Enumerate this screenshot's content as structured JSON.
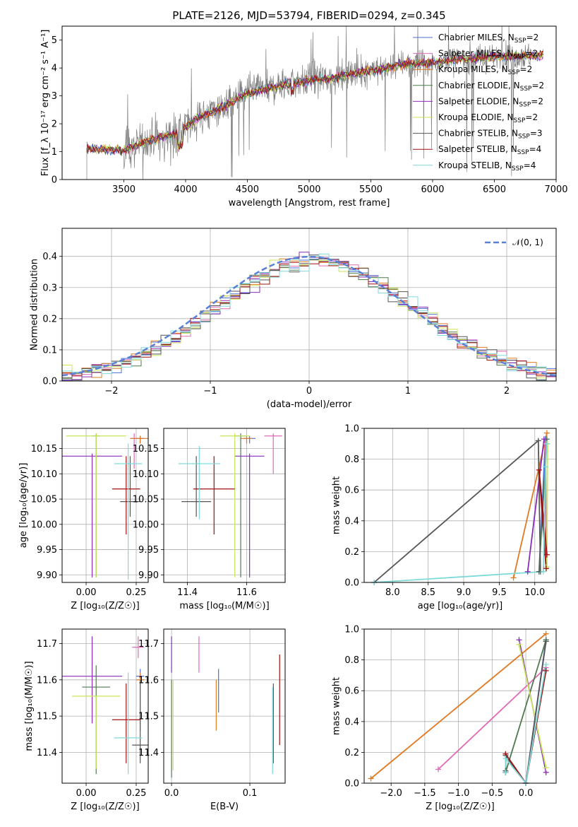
{
  "title": "PLATE=2126, MJD=53794, FIBERID=0294, z=0.345",
  "colors": {
    "chabrier_miles": "#4a6fd6",
    "salpeter_miles": "#e06ab6",
    "kroupa_miles": "#e07a22",
    "chabrier_elodie": "#4f7a4f",
    "salpeter_elodie": "#8a2cb8",
    "kroupa_elodie": "#c8e65a",
    "chabrier_stelib": "#555555",
    "salpeter_stelib": "#a01010",
    "kroupa_stelib": "#7ed9d9",
    "spectrum": "#7f7f7f",
    "normal_curve": "#5a80d6"
  },
  "chart_data": [
    {
      "id": "spectrum",
      "type": "line",
      "xlabel": "wavelength [Angstrom, rest frame]",
      "ylabel": "Flux [f_λ 10⁻¹⁷ erg cm⁻² s⁻¹ A⁻¹]",
      "xlim": [
        3000,
        7000
      ],
      "ylim": [
        0,
        5.5
      ],
      "xticks": [
        "3500",
        "4000",
        "4500",
        "5000",
        "5500",
        "6000",
        "6500",
        "7000"
      ],
      "yticks": [
        "0",
        "1",
        "2",
        "3",
        "4",
        "5"
      ],
      "grid": false,
      "legend_position": "top-right",
      "legend": [
        {
          "label": "Chabrier MILES, N",
          "sub": "SSP",
          "tail": "=2",
          "color_key": "chabrier_miles"
        },
        {
          "label": "Salpeter MILES, N",
          "sub": "SSP",
          "tail": "=2",
          "color_key": "salpeter_miles"
        },
        {
          "label": "Kroupa MILES, N",
          "sub": "SSP",
          "tail": "=2",
          "color_key": "kroupa_miles"
        },
        {
          "label": "Chabrier ELODIE, N",
          "sub": "SSP",
          "tail": "=2",
          "color_key": "chabrier_elodie"
        },
        {
          "label": "Salpeter ELODIE, N",
          "sub": "SSP",
          "tail": "=2",
          "color_key": "salpeter_elodie"
        },
        {
          "label": "Kroupa ELODIE, N",
          "sub": "SSP",
          "tail": "=2",
          "color_key": "kroupa_elodie"
        },
        {
          "label": "Chabrier STELIB, N",
          "sub": "SSP",
          "tail": "=3",
          "color_key": "chabrier_stelib"
        },
        {
          "label": "Salpeter STELIB, N",
          "sub": "SSP",
          "tail": "=4",
          "color_key": "salpeter_stelib"
        },
        {
          "label": "Kroupa STELIB, N",
          "sub": "SSP",
          "tail": "=4",
          "color_key": "kroupa_stelib"
        }
      ],
      "continuum": [
        [
          3200,
          1.1
        ],
        [
          3500,
          1.05
        ],
        [
          3700,
          1.4
        ],
        [
          3950,
          1.7
        ],
        [
          4100,
          2.2
        ],
        [
          4300,
          2.6
        ],
        [
          4500,
          3.1
        ],
        [
          4800,
          3.4
        ],
        [
          5000,
          3.55
        ],
        [
          5200,
          3.65
        ],
        [
          5400,
          3.85
        ],
        [
          5600,
          4.0
        ],
        [
          5800,
          4.15
        ],
        [
          6000,
          4.2
        ],
        [
          6200,
          4.3
        ],
        [
          6500,
          4.4
        ],
        [
          6800,
          4.45
        ]
      ],
      "model_start": 3200,
      "data_start": 3500,
      "data_end": 6800
    },
    {
      "id": "residual-hist",
      "type": "bar",
      "xlabel": "(data-model)/error",
      "ylabel": "Normed distribution",
      "xlim": [
        -2.5,
        2.5
      ],
      "ylim": [
        0,
        0.49
      ],
      "xticks": [
        "−2",
        "−1",
        "0",
        "1",
        "2"
      ],
      "yticks": [
        "0.0",
        "0.1",
        "0.2",
        "0.3",
        "0.4"
      ],
      "grid": true,
      "legend_position": "top-right",
      "legend_label": "𝒩(0, 1)",
      "bin_width": 0.1,
      "bin_start": -2.5,
      "bins": 50
    },
    {
      "id": "age-vs-Z",
      "type": "scatter",
      "xlabel": "Z [log₁₀(Z/Z☉)]",
      "ylabel": "age  [log₁₀(age/yr)]",
      "xlim": [
        -0.12,
        0.31
      ],
      "ylim": [
        9.885,
        10.19
      ],
      "xticks": [
        "0.00",
        "0.25"
      ],
      "yticks": [
        "9.90",
        "9.95",
        "10.00",
        "10.05",
        "10.10",
        "10.15"
      ],
      "grid": true,
      "points": [
        {
          "c": "chabrier_miles",
          "x": 0.27,
          "y": 10.17,
          "xerr": 0.02,
          "yerr": [
            0.01,
            0.005
          ]
        },
        {
          "c": "salpeter_miles",
          "x": 0.24,
          "y": 10.17,
          "xerr": 0.02,
          "yerr": [
            0.06,
            0.01
          ]
        },
        {
          "c": "kroupa_miles",
          "x": 0.27,
          "y": 10.17,
          "xerr": 0.05,
          "yerr": [
            0.01,
            0.005
          ]
        },
        {
          "c": "chabrier_elodie",
          "x": 0.05,
          "y": 10.175,
          "xerr": 0.02,
          "yerr": [
            0.28,
            0.005
          ]
        },
        {
          "c": "salpeter_elodie",
          "x": 0.03,
          "y": 10.135,
          "xerr": 0.15,
          "yerr": [
            0.24,
            0.005
          ]
        },
        {
          "c": "kroupa_elodie",
          "x": 0.05,
          "y": 10.175,
          "xerr": 0.15,
          "yerr": [
            0.28,
            0.005
          ]
        },
        {
          "c": "chabrier_stelib",
          "x": 0.22,
          "y": 10.045,
          "xerr": 0.05,
          "yerr": [
            0.03,
            0.09
          ]
        },
        {
          "c": "salpeter_stelib",
          "x": 0.2,
          "y": 10.07,
          "xerr": 0.07,
          "yerr": [
            0.09,
            0.065
          ]
        },
        {
          "c": "kroupa_stelib",
          "x": 0.21,
          "y": 10.12,
          "xerr": 0.07,
          "yerr": [
            0.23,
            0.04
          ]
        }
      ]
    },
    {
      "id": "age-vs-mass",
      "type": "scatter",
      "xlabel": "mass [log₁₀(M/M☉)]",
      "ylabel": "",
      "xlim": [
        11.32,
        11.73
      ],
      "ylim": [
        9.885,
        10.19
      ],
      "xticks": [
        "11.4",
        "11.6"
      ],
      "yticks": [
        "9.90",
        "9.95",
        "10.00",
        "10.05",
        "10.10",
        "10.15"
      ],
      "grid": true,
      "points": [
        {
          "c": "chabrier_miles",
          "x": 11.61,
          "y": 10.17,
          "xerr": 0.02,
          "yerr": [
            0.01,
            0.005
          ]
        },
        {
          "c": "salpeter_miles",
          "x": 11.69,
          "y": 10.175,
          "xerr": 0.03,
          "yerr": [
            0.075,
            0.005
          ]
        },
        {
          "c": "kroupa_miles",
          "x": 11.6,
          "y": 10.17,
          "xerr": 0.02,
          "yerr": [
            0.01,
            0.005
          ]
        },
        {
          "c": "chabrier_elodie",
          "x": 11.58,
          "y": 10.175,
          "xerr": 0.02,
          "yerr": [
            0.28,
            0.005
          ]
        },
        {
          "c": "salpeter_elodie",
          "x": 11.61,
          "y": 10.135,
          "xerr": 0.05,
          "yerr": [
            0.24,
            0.005
          ]
        },
        {
          "c": "kroupa_elodie",
          "x": 11.56,
          "y": 10.175,
          "xerr": 0.05,
          "yerr": [
            0.28,
            0.005
          ]
        },
        {
          "c": "chabrier_stelib",
          "x": 11.43,
          "y": 10.045,
          "xerr": 0.05,
          "yerr": [
            0.03,
            0.09
          ]
        },
        {
          "c": "salpeter_stelib",
          "x": 11.49,
          "y": 10.07,
          "xerr": 0.07,
          "yerr": [
            0.09,
            0.065
          ]
        },
        {
          "c": "kroupa_stelib",
          "x": 11.44,
          "y": 10.12,
          "xerr": 0.07,
          "yerr": [
            0.11,
            0.035
          ]
        }
      ]
    },
    {
      "id": "massweight-vs-age",
      "type": "line",
      "xlabel": "age  [log₁₀(age/yr)]",
      "ylabel": "mass weight",
      "xlim": [
        7.6,
        10.3
      ],
      "ylim": [
        0,
        1.0
      ],
      "xticks": [
        "8.0",
        "8.5",
        "9.0",
        "9.5",
        "10.0"
      ],
      "yticks": [
        "0.0",
        "0.2",
        "0.4",
        "0.6",
        "0.8",
        "1.0"
      ],
      "grid": true,
      "series": [
        {
          "c": "chabrier_miles",
          "x": [
            10.06,
            10.15
          ],
          "y": [
            0.07,
            0.93
          ]
        },
        {
          "c": "salpeter_miles",
          "x": [
            10.16,
            10.15
          ],
          "y": [
            0.1,
            0.9
          ]
        },
        {
          "c": "kroupa_miles",
          "x": [
            9.7,
            10.17
          ],
          "y": [
            0.03,
            0.97
          ]
        },
        {
          "c": "chabrier_elodie",
          "x": [
            10.06,
            10.17
          ],
          "y": [
            0.07,
            0.93
          ]
        },
        {
          "c": "salpeter_elodie",
          "x": [
            9.9,
            10.13
          ],
          "y": [
            0.07,
            0.93
          ]
        },
        {
          "c": "kroupa_elodie",
          "x": [
            10.17,
            10.18
          ],
          "y": [
            0.1,
            0.9
          ]
        },
        {
          "c": "chabrier_stelib",
          "x": [
            7.74,
            10.05,
            10.08
          ],
          "y": [
            0.0,
            0.92,
            0.07
          ]
        },
        {
          "c": "salpeter_stelib",
          "x": [
            10.17,
            10.06,
            10.16
          ],
          "y": [
            0.18,
            0.73,
            0.09
          ]
        },
        {
          "c": "kroupa_stelib",
          "x": [
            7.74,
            10.12,
            10.15,
            10.17
          ],
          "y": [
            0.0,
            0.07,
            0.75,
            0.9
          ]
        }
      ]
    },
    {
      "id": "mass-vs-Z",
      "type": "scatter",
      "xlabel": "Z [log₁₀(Z/Z☉)]",
      "ylabel": "mass [log₁₀(M/M☉)]",
      "xlim": [
        -0.12,
        0.31
      ],
      "ylim": [
        11.315,
        11.74
      ],
      "xticks": [
        "0.00",
        "0.25"
      ],
      "yticks": [
        "11.4",
        "11.5",
        "11.6",
        "11.7"
      ],
      "grid": true,
      "points": [
        {
          "c": "chabrier_miles",
          "x": 0.27,
          "y": 11.61,
          "xerr": 0.02,
          "yerr": [
            0.02,
            0.02
          ]
        },
        {
          "c": "salpeter_miles",
          "x": 0.26,
          "y": 11.69,
          "xerr": 0.03,
          "yerr": [
            0.03,
            0.03
          ]
        },
        {
          "c": "kroupa_miles",
          "x": 0.27,
          "y": 11.6,
          "xerr": 0.02,
          "yerr": [
            0.14,
            0.02
          ]
        },
        {
          "c": "chabrier_elodie",
          "x": 0.05,
          "y": 11.58,
          "xerr": 0.07,
          "yerr": [
            0.24,
            0.06
          ]
        },
        {
          "c": "salpeter_elodie",
          "x": 0.03,
          "y": 11.61,
          "xerr": 0.15,
          "yerr": [
            0.13,
            0.11
          ]
        },
        {
          "c": "kroupa_elodie",
          "x": 0.05,
          "y": 11.555,
          "xerr": 0.12,
          "yerr": [
            0.2,
            0.0
          ]
        },
        {
          "c": "chabrier_stelib",
          "x": 0.27,
          "y": 11.42,
          "xerr": 0.04,
          "yerr": [
            0.05,
            0.18
          ]
        },
        {
          "c": "salpeter_stelib",
          "x": 0.2,
          "y": 11.49,
          "xerr": 0.07,
          "yerr": [
            0.12,
            0.1
          ]
        },
        {
          "c": "kroupa_stelib",
          "x": 0.21,
          "y": 11.44,
          "xerr": 0.07,
          "yerr": [
            0.1,
            0.18
          ]
        }
      ]
    },
    {
      "id": "mass-vs-ebv",
      "type": "scatter",
      "xlabel": "E(B-V)",
      "ylabel": "",
      "xlim": [
        -0.01,
        0.145
      ],
      "ylim": [
        11.315,
        11.74
      ],
      "xticks": [
        "0.0",
        "0.1"
      ],
      "yticks": [
        "11.4",
        "11.5",
        "11.6",
        "11.7"
      ],
      "grid": true,
      "points": [
        {
          "c": "chabrier_miles",
          "x": 0.06,
          "y": 11.58,
          "xerr": 0.0,
          "yerr": [
            0.07,
            0.05
          ]
        },
        {
          "c": "salpeter_miles",
          "x": 0.035,
          "y": 11.66,
          "xerr": 0.0,
          "yerr": [
            0.04,
            0.06
          ]
        },
        {
          "c": "kroupa_miles",
          "x": 0.057,
          "y": 11.53,
          "xerr": 0.0,
          "yerr": [
            0.07,
            0.07
          ]
        },
        {
          "c": "chabrier_elodie",
          "x": 0.0,
          "y": 11.5,
          "xerr": 0.0,
          "yerr": [
            0.17,
            0.1
          ]
        },
        {
          "c": "salpeter_elodie",
          "x": 0.0,
          "y": 11.65,
          "xerr": 0.0,
          "yerr": [
            0.03,
            0.07
          ]
        },
        {
          "c": "kroupa_elodie",
          "x": 0.002,
          "y": 11.45,
          "xerr": 0.0,
          "yerr": [
            0.1,
            0.15
          ]
        },
        {
          "c": "chabrier_stelib",
          "x": 0.13,
          "y": 11.47,
          "xerr": 0.0,
          "yerr": [
            0.1,
            0.12
          ]
        },
        {
          "c": "salpeter_stelib",
          "x": 0.138,
          "y": 11.55,
          "xerr": 0.0,
          "yerr": [
            0.13,
            0.12
          ]
        },
        {
          "c": "kroupa_stelib",
          "x": 0.129,
          "y": 11.45,
          "xerr": 0.0,
          "yerr": [
            0.11,
            0.13
          ]
        }
      ]
    },
    {
      "id": "massweight-vs-Z",
      "type": "line",
      "xlabel": "Z [log₁₀(Z/Z☉)]",
      "ylabel": "mass weight",
      "xlim": [
        -2.4,
        0.45
      ],
      "ylim": [
        0,
        1.0
      ],
      "xticks": [
        "−2.0",
        "−1.5",
        "−1.0",
        "−0.5",
        "0.0"
      ],
      "yticks": [
        "0.0",
        "0.2",
        "0.4",
        "0.6",
        "0.8",
        "1.0"
      ],
      "grid": true,
      "series": [
        {
          "c": "chabrier_miles",
          "x": [
            0.0,
            0.3
          ],
          "y": [
            0.0,
            0.93
          ]
        },
        {
          "c": "salpeter_miles",
          "x": [
            -1.3,
            0.3
          ],
          "y": [
            0.09,
            0.75
          ]
        },
        {
          "c": "kroupa_miles",
          "x": [
            -2.3,
            0.3
          ],
          "y": [
            0.03,
            0.97
          ]
        },
        {
          "c": "chabrier_elodie",
          "x": [
            -0.3,
            0.3
          ],
          "y": [
            0.07,
            0.93
          ]
        },
        {
          "c": "salpeter_elodie",
          "x": [
            -0.1,
            0.3
          ],
          "y": [
            0.93,
            0.07
          ]
        },
        {
          "c": "kroupa_elodie",
          "x": [
            -0.1,
            0.3
          ],
          "y": [
            0.9,
            0.1
          ]
        },
        {
          "c": "chabrier_stelib",
          "x": [
            -0.3,
            -0.3,
            0.0,
            0.3
          ],
          "y": [
            0.08,
            0.18,
            0.0,
            0.92
          ]
        },
        {
          "c": "salpeter_stelib",
          "x": [
            -0.3,
            -0.3,
            0.0,
            0.3
          ],
          "y": [
            0.07,
            0.19,
            0.0,
            0.73
          ]
        },
        {
          "c": "kroupa_stelib",
          "x": [
            -0.3,
            -0.3,
            0.0,
            0.3
          ],
          "y": [
            0.07,
            0.16,
            0.0,
            0.77
          ]
        }
      ]
    }
  ]
}
